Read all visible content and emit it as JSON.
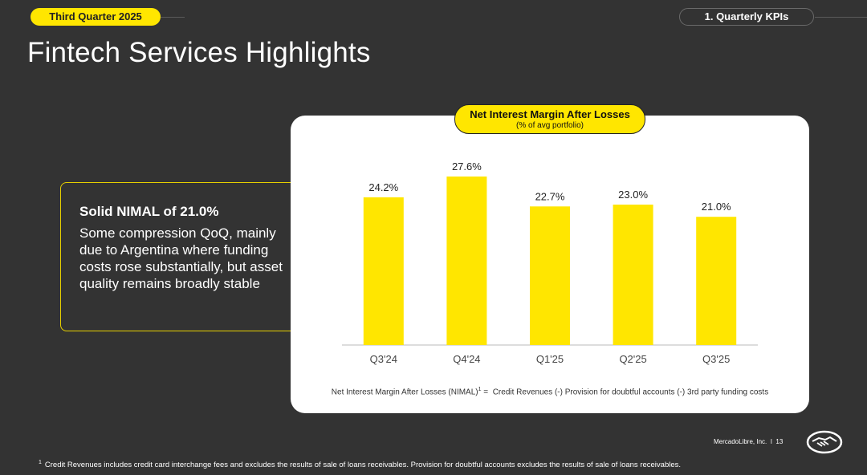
{
  "header": {
    "quarter_label": "Third Quarter 2025",
    "section_label": "1. Quarterly KPIs"
  },
  "page_title": "Fintech Services Highlights",
  "callout": {
    "headline": "Solid NIMAL of 21.0%",
    "body": "Some compression QoQ, mainly due to Argentina where funding costs rose substantially, but asset quality remains broadly stable"
  },
  "chart_data": {
    "type": "bar",
    "title": "Net Interest Margin After Losses",
    "subtitle": "(% of avg portfolio)",
    "categories": [
      "Q3'24",
      "Q4'24",
      "Q1'25",
      "Q2'25",
      "Q3'25"
    ],
    "values": [
      24.2,
      27.6,
      22.7,
      23.0,
      21.0
    ],
    "value_labels": [
      "24.2%",
      "27.6%",
      "22.7%",
      "23.0%",
      "21.0%"
    ],
    "bar_color": "#ffe600",
    "ylim": [
      0,
      27.6
    ],
    "xlabel": "",
    "ylabel": ""
  },
  "formula": {
    "text": "Net Interest Margin After Losses (NIMAL)",
    "sup": "1",
    "rest": " =  Credit Revenues (-) Provision for doubtful accounts (-) 3rd party funding costs"
  },
  "footer": {
    "company": "MercadoLibre, Inc.",
    "separator": "I",
    "page_number": "13"
  },
  "footnote": {
    "marker": "1",
    "text": "Credit Revenues includes credit card interchange fees and excludes the results of sale of loans receivables. Provision for doubtful accounts excludes the results of sale of loans receivables."
  },
  "colors": {
    "accent": "#ffe600",
    "background": "#333333"
  }
}
